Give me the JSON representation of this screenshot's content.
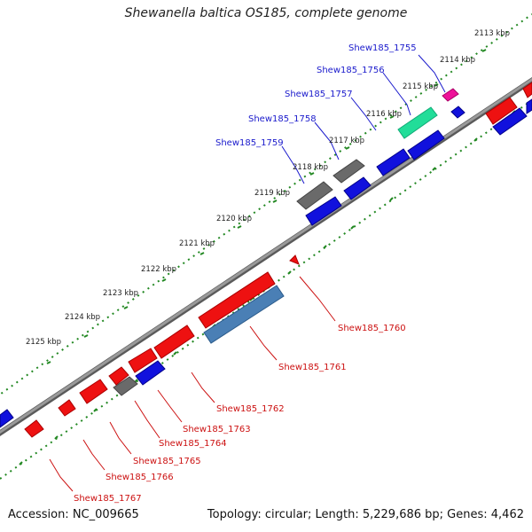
{
  "title": "Shewanella baltica OS185, complete genome",
  "footer": {
    "accession": "Accession: NC_009665",
    "summary": "Topology: circular; Length: 5,229,686 bp; Genes: 4,462"
  },
  "scale_labels": [
    {
      "text": "2113 kbp"
    },
    {
      "text": "2114 kbp"
    },
    {
      "text": "2115 kbp"
    },
    {
      "text": "2116 kbp"
    },
    {
      "text": "2117 kbp"
    },
    {
      "text": "2118 kbp"
    },
    {
      "text": "2119 kbp"
    },
    {
      "text": "2120 kbp"
    },
    {
      "text": "2121 kbp"
    },
    {
      "text": "2122 kbp"
    },
    {
      "text": "2123 kbp"
    },
    {
      "text": "2124 kbp"
    },
    {
      "text": "2125 kbp"
    }
  ],
  "gene_labels": [
    {
      "text": "Shew185_1755",
      "strand": "plus"
    },
    {
      "text": "Shew185_1756",
      "strand": "plus"
    },
    {
      "text": "Shew185_1757",
      "strand": "plus"
    },
    {
      "text": "Shew185_1758",
      "strand": "plus"
    },
    {
      "text": "Shew185_1759",
      "strand": "plus"
    },
    {
      "text": "Shew185_1760",
      "strand": "minus"
    },
    {
      "text": "Shew185_1761",
      "strand": "minus"
    },
    {
      "text": "Shew185_1762",
      "strand": "minus"
    },
    {
      "text": "Shew185_1763",
      "strand": "minus"
    },
    {
      "text": "Shew185_1764",
      "strand": "minus"
    },
    {
      "text": "Shew185_1765",
      "strand": "minus"
    },
    {
      "text": "Shew185_1766",
      "strand": "minus"
    },
    {
      "text": "Shew185_1767",
      "strand": "minus"
    }
  ],
  "colors": {
    "plus_label": "#1a1acc",
    "minus_label": "#cc1111",
    "red_gene": "#ee1111",
    "blue_gene": "#1111dd",
    "gray_gene": "#6a6a6a",
    "steel_gene": "#4a7fb5",
    "green_gene": "#22dd99",
    "magenta_gene": "#ee1199",
    "backbone": "#808080",
    "ticks": "#228822"
  }
}
